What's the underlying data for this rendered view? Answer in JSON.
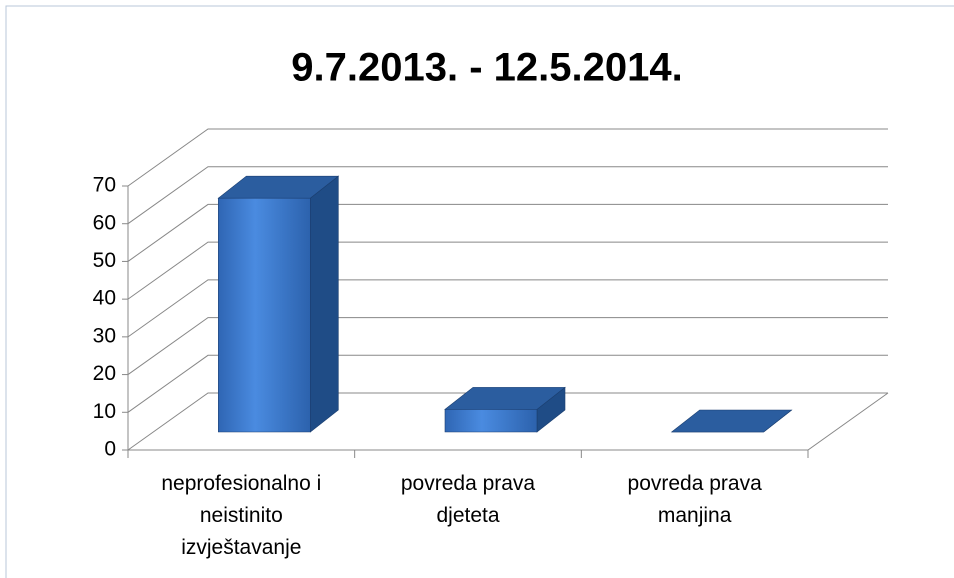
{
  "chart_data": {
    "type": "bar3d",
    "title": "9.7.2013. - 12.5.2014.",
    "categories": [
      "neprofesionalno i neistinito izvještavanje",
      "povreda prava djeteta",
      "povreda prava manjina"
    ],
    "values": [
      62,
      6,
      0
    ],
    "color": "#3a78c9",
    "ylim": [
      0,
      70
    ],
    "yticks": [
      0,
      10,
      20,
      30,
      40,
      50,
      60,
      70
    ],
    "grid": true
  }
}
